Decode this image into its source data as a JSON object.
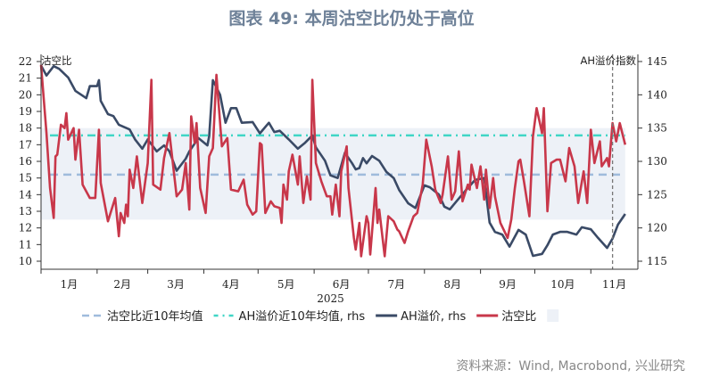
{
  "chart_data": {
    "type": "line",
    "title": "图表 49: 本周沽空比仍处于高位",
    "source": "资料来源：Wind, Macrobond, 兴业研究",
    "xlabel": "2025",
    "ylabel_left": "沽空比",
    "ylabel_right": "AH溢价指数",
    "xlim": [
      "2025-01-01",
      "2025-11-27"
    ],
    "ylim_left": [
      10,
      22
    ],
    "ylim_right": [
      115,
      145
    ],
    "yticks_left": [
      10,
      11,
      12,
      13,
      14,
      15,
      16,
      17,
      18,
      19,
      20,
      21,
      22
    ],
    "yticks_right": [
      115,
      120,
      125,
      130,
      135,
      140,
      145
    ],
    "xtick_labels": [
      "1月",
      "2月",
      "3月",
      "4月",
      "5月",
      "6月",
      "7月",
      "8月",
      "9月",
      "10月",
      "11月"
    ],
    "grid": false,
    "legend_position": "bottom",
    "marker_date": "2025-11-13",
    "band": {
      "name": "",
      "axis": "left",
      "range": [
        12.5,
        18
      ],
      "color": "#edf1f7"
    },
    "series": [
      {
        "name": "沽空比近10年均值",
        "axis": "left",
        "style": "dashed",
        "color": "#9fbbdc",
        "value": 15.2
      },
      {
        "name": "AH溢价近10年均值, rhs",
        "axis": "right",
        "style": "dashdot",
        "color": "#40d6c6",
        "value": 133.9
      },
      {
        "name": "AH溢价, rhs",
        "axis": "right",
        "style": "solid",
        "color": "#3a4a66",
        "points": [
          [
            "2025-01-01",
            144.4
          ],
          [
            "2025-01-04",
            142.9
          ],
          [
            "2025-01-08",
            144.3
          ],
          [
            "2025-01-11",
            143.9
          ],
          [
            "2025-01-16",
            142.6
          ],
          [
            "2025-01-20",
            140.6
          ],
          [
            "2025-01-26",
            139.5
          ],
          [
            "2025-01-28",
            141.3
          ],
          [
            "2025-02-01",
            141.3
          ],
          [
            "2025-02-02",
            142.2
          ],
          [
            "2025-02-03",
            139.1
          ],
          [
            "2025-02-07",
            137.1
          ],
          [
            "2025-02-10",
            136.8
          ],
          [
            "2025-02-13",
            135.5
          ],
          [
            "2025-02-19",
            134.8
          ],
          [
            "2025-02-22",
            133.3
          ],
          [
            "2025-02-26",
            131.9
          ],
          [
            "2025-03-01",
            133.3
          ],
          [
            "2025-03-06",
            131.5
          ],
          [
            "2025-03-10",
            132.4
          ],
          [
            "2025-03-13",
            131.5
          ],
          [
            "2025-03-17",
            128.6
          ],
          [
            "2025-03-22",
            130.4
          ],
          [
            "2025-03-24",
            131.5
          ],
          [
            "2025-03-29",
            133.5
          ],
          [
            "2025-04-03",
            132.4
          ],
          [
            "2025-04-04",
            133.8
          ],
          [
            "2025-04-06",
            142.2
          ],
          [
            "2025-04-10",
            140.0
          ],
          [
            "2025-04-13",
            135.8
          ],
          [
            "2025-04-16",
            138.0
          ],
          [
            "2025-04-19",
            138.0
          ],
          [
            "2025-04-22",
            135.8
          ],
          [
            "2025-04-28",
            135.9
          ],
          [
            "2025-05-02",
            134.2
          ],
          [
            "2025-05-07",
            135.8
          ],
          [
            "2025-05-10",
            134.4
          ],
          [
            "2025-05-13",
            134.6
          ],
          [
            "2025-05-18",
            133.3
          ],
          [
            "2025-05-23",
            131.9
          ],
          [
            "2025-05-27",
            132.8
          ],
          [
            "2025-05-31",
            133.9
          ],
          [
            "2025-06-02",
            132.1
          ],
          [
            "2025-06-07",
            130.1
          ],
          [
            "2025-06-10",
            127.9
          ],
          [
            "2025-06-14",
            127.5
          ],
          [
            "2025-06-18",
            131.3
          ],
          [
            "2025-06-22",
            129.7
          ],
          [
            "2025-06-24",
            128.8
          ],
          [
            "2025-06-26",
            129.0
          ],
          [
            "2025-06-28",
            130.5
          ],
          [
            "2025-06-30",
            129.7
          ],
          [
            "2025-07-03",
            130.8
          ],
          [
            "2025-07-07",
            130.1
          ],
          [
            "2025-07-11",
            128.4
          ],
          [
            "2025-07-15",
            127.5
          ],
          [
            "2025-07-18",
            125.7
          ],
          [
            "2025-07-23",
            123.7
          ],
          [
            "2025-07-27",
            123.0
          ],
          [
            "2025-08-01",
            126.4
          ],
          [
            "2025-08-04",
            126.1
          ],
          [
            "2025-08-09",
            125.0
          ],
          [
            "2025-08-12",
            123.2
          ],
          [
            "2025-08-15",
            122.8
          ],
          [
            "2025-08-19",
            124.1
          ],
          [
            "2025-08-24",
            125.7
          ],
          [
            "2025-08-29",
            127.2
          ],
          [
            "2025-09-03",
            127.5
          ],
          [
            "2025-09-06",
            120.8
          ],
          [
            "2025-09-09",
            119.4
          ],
          [
            "2025-09-13",
            119.0
          ],
          [
            "2025-09-17",
            117.2
          ],
          [
            "2025-09-22",
            119.7
          ],
          [
            "2025-09-26",
            119.0
          ],
          [
            "2025-09-30",
            115.8
          ],
          [
            "2025-10-05",
            116.1
          ],
          [
            "2025-10-08",
            117.4
          ],
          [
            "2025-10-11",
            119.0
          ],
          [
            "2025-10-15",
            119.4
          ],
          [
            "2025-10-19",
            119.4
          ],
          [
            "2025-10-24",
            119.0
          ],
          [
            "2025-10-27",
            120.1
          ],
          [
            "2025-11-01",
            119.8
          ],
          [
            "2025-11-05",
            118.5
          ],
          [
            "2025-11-10",
            117.0
          ],
          [
            "2025-11-13",
            118.4
          ],
          [
            "2025-11-16",
            120.5
          ],
          [
            "2025-11-20",
            122.1
          ]
        ]
      },
      {
        "name": "沽空比",
        "axis": "left",
        "style": "solid",
        "color": "#c8374a",
        "points": [
          [
            "2025-01-01",
            21.8
          ],
          [
            "2025-01-04",
            17.7
          ],
          [
            "2025-01-06",
            14.4
          ],
          [
            "2025-01-08",
            12.6
          ],
          [
            "2025-01-09",
            16.3
          ],
          [
            "2025-01-10",
            16.4
          ],
          [
            "2025-01-12",
            18.2
          ],
          [
            "2025-01-14",
            18.0
          ],
          [
            "2025-01-15",
            18.9
          ],
          [
            "2025-01-16",
            17.3
          ],
          [
            "2025-01-19",
            18.0
          ],
          [
            "2025-01-20",
            16.1
          ],
          [
            "2025-01-22",
            17.9
          ],
          [
            "2025-01-24",
            14.6
          ],
          [
            "2025-01-28",
            13.8
          ],
          [
            "2025-01-31",
            13.8
          ],
          [
            "2025-02-02",
            17.9
          ],
          [
            "2025-02-03",
            14.7
          ],
          [
            "2025-02-07",
            12.4
          ],
          [
            "2025-02-11",
            13.8
          ],
          [
            "2025-02-13",
            11.5
          ],
          [
            "2025-02-14",
            12.9
          ],
          [
            "2025-02-16",
            12.3
          ],
          [
            "2025-02-17",
            13.4
          ],
          [
            "2025-02-18",
            12.7
          ],
          [
            "2025-02-19",
            15.5
          ],
          [
            "2025-02-21",
            14.4
          ],
          [
            "2025-02-23",
            16.3
          ],
          [
            "2025-02-26",
            13.5
          ],
          [
            "2025-03-01",
            15.9
          ],
          [
            "2025-03-03",
            20.9
          ],
          [
            "2025-03-04",
            14.6
          ],
          [
            "2025-03-08",
            14.3
          ],
          [
            "2025-03-10",
            16.2
          ],
          [
            "2025-03-13",
            17.7
          ],
          [
            "2025-03-17",
            13.9
          ],
          [
            "2025-03-20",
            14.3
          ],
          [
            "2025-03-22",
            15.9
          ],
          [
            "2025-03-24",
            13.1
          ],
          [
            "2025-03-25",
            18.7
          ],
          [
            "2025-03-27",
            17.1
          ],
          [
            "2025-03-28",
            18.3
          ],
          [
            "2025-03-30",
            14.4
          ],
          [
            "2025-04-02",
            12.9
          ],
          [
            "2025-04-04",
            16.3
          ],
          [
            "2025-04-06",
            16.8
          ],
          [
            "2025-04-08",
            21.2
          ],
          [
            "2025-04-11",
            16.9
          ],
          [
            "2025-04-14",
            17.4
          ],
          [
            "2025-04-16",
            14.3
          ],
          [
            "2025-04-20",
            14.2
          ],
          [
            "2025-04-23",
            14.9
          ],
          [
            "2025-04-25",
            13.4
          ],
          [
            "2025-04-28",
            12.8
          ],
          [
            "2025-04-30",
            13.0
          ],
          [
            "2025-05-02",
            17.1
          ],
          [
            "2025-05-03",
            17.0
          ],
          [
            "2025-05-05",
            12.9
          ],
          [
            "2025-05-08",
            13.6
          ],
          [
            "2025-05-10",
            13.3
          ],
          [
            "2025-05-13",
            13.2
          ],
          [
            "2025-05-14",
            12.3
          ],
          [
            "2025-05-15",
            14.6
          ],
          [
            "2025-05-17",
            13.7
          ],
          [
            "2025-05-18",
            15.4
          ],
          [
            "2025-05-20",
            16.4
          ],
          [
            "2025-05-23",
            14.6
          ],
          [
            "2025-05-24",
            16.3
          ],
          [
            "2025-05-26",
            13.5
          ],
          [
            "2025-05-28",
            15.1
          ],
          [
            "2025-05-30",
            13.7
          ],
          [
            "2025-05-31",
            20.9
          ],
          [
            "2025-06-02",
            15.9
          ],
          [
            "2025-06-05",
            14.8
          ],
          [
            "2025-06-08",
            13.9
          ],
          [
            "2025-06-10",
            13.9
          ],
          [
            "2025-06-11",
            12.8
          ],
          [
            "2025-06-13",
            14.6
          ],
          [
            "2025-06-15",
            12.7
          ],
          [
            "2025-06-16",
            15.4
          ],
          [
            "2025-06-19",
            16.9
          ],
          [
            "2025-06-20",
            14.4
          ],
          [
            "2025-06-23",
            11.4
          ],
          [
            "2025-06-24",
            10.7
          ],
          [
            "2025-06-26",
            12.3
          ],
          [
            "2025-06-27",
            10.3
          ],
          [
            "2025-06-30",
            12.7
          ],
          [
            "2025-07-01",
            12.3
          ],
          [
            "2025-07-02",
            10.4
          ],
          [
            "2025-07-05",
            14.4
          ],
          [
            "2025-07-06",
            12.3
          ],
          [
            "2025-07-07",
            13.1
          ],
          [
            "2025-07-10",
            10.3
          ],
          [
            "2025-07-12",
            12.7
          ],
          [
            "2025-07-15",
            12.4
          ],
          [
            "2025-07-17",
            11.9
          ],
          [
            "2025-07-18",
            11.8
          ],
          [
            "2025-07-21",
            11.1
          ],
          [
            "2025-07-23",
            11.8
          ],
          [
            "2025-07-26",
            12.7
          ],
          [
            "2025-07-28",
            12.9
          ],
          [
            "2025-07-31",
            14.6
          ],
          [
            "2025-08-02",
            17.3
          ],
          [
            "2025-08-05",
            15.7
          ],
          [
            "2025-08-07",
            14.3
          ],
          [
            "2025-08-10",
            13.5
          ],
          [
            "2025-08-11",
            14.0
          ],
          [
            "2025-08-14",
            16.3
          ],
          [
            "2025-08-16",
            13.7
          ],
          [
            "2025-08-18",
            14.2
          ],
          [
            "2025-08-20",
            16.6
          ],
          [
            "2025-08-22",
            13.6
          ],
          [
            "2025-08-25",
            14.6
          ],
          [
            "2025-08-26",
            14.3
          ],
          [
            "2025-08-27",
            15.8
          ],
          [
            "2025-08-30",
            14.4
          ],
          [
            "2025-09-01",
            15.7
          ],
          [
            "2025-09-03",
            13.7
          ],
          [
            "2025-09-04",
            15.5
          ],
          [
            "2025-09-06",
            13.2
          ],
          [
            "2025-09-08",
            15.0
          ],
          [
            "2025-09-09",
            13.9
          ],
          [
            "2025-09-12",
            12.3
          ],
          [
            "2025-09-16",
            11.4
          ],
          [
            "2025-09-18",
            12.5
          ],
          [
            "2025-09-20",
            14.4
          ],
          [
            "2025-09-22",
            16.0
          ],
          [
            "2025-09-23",
            16.1
          ],
          [
            "2025-09-25",
            14.8
          ],
          [
            "2025-09-28",
            12.7
          ],
          [
            "2025-09-30",
            17.5
          ],
          [
            "2025-10-02",
            19.2
          ],
          [
            "2025-10-05",
            17.7
          ],
          [
            "2025-10-06",
            19.2
          ],
          [
            "2025-10-08",
            13.0
          ],
          [
            "2025-10-10",
            15.9
          ],
          [
            "2025-10-13",
            16.1
          ],
          [
            "2025-10-15",
            16.1
          ],
          [
            "2025-10-18",
            14.8
          ],
          [
            "2025-10-20",
            16.8
          ],
          [
            "2025-10-23",
            15.7
          ],
          [
            "2025-10-25",
            13.5
          ],
          [
            "2025-10-28",
            15.4
          ],
          [
            "2025-10-30",
            13.5
          ],
          [
            "2025-11-01",
            17.9
          ],
          [
            "2025-11-03",
            15.9
          ],
          [
            "2025-11-06",
            17.2
          ],
          [
            "2025-11-07",
            15.7
          ],
          [
            "2025-11-10",
            16.2
          ],
          [
            "2025-11-11",
            15.7
          ],
          [
            "2025-11-13",
            18.3
          ],
          [
            "2025-11-15",
            17.2
          ],
          [
            "2025-11-17",
            18.3
          ],
          [
            "2025-11-20",
            17.0
          ]
        ]
      }
    ]
  }
}
